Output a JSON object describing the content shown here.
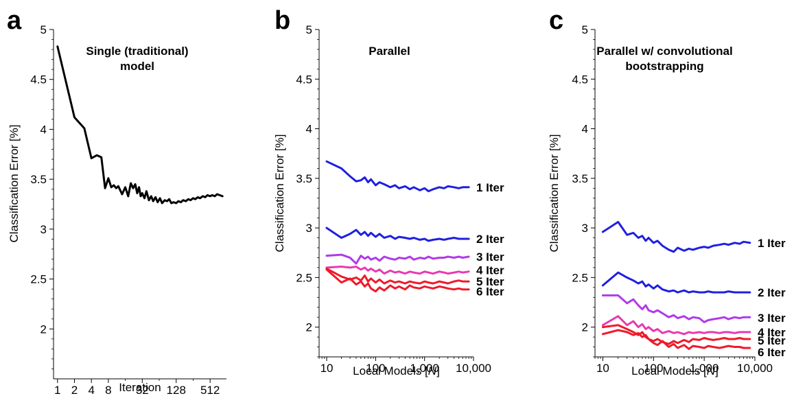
{
  "chart_data": [
    {
      "type": "line",
      "panel_letter": "a",
      "title": "Single (traditional) model",
      "xlabel": "Iteration",
      "ylabel": "Classification Error [%]",
      "xscale": "log2",
      "xlim": [
        0.85,
        1000
      ],
      "ylim": [
        1.5,
        5
      ],
      "xticks": [
        1,
        2,
        4,
        8,
        32,
        128,
        512
      ],
      "xtick_labels": [
        "1",
        "2",
        "4",
        "8",
        "32",
        "128",
        "512"
      ],
      "yticks": [
        2,
        2.5,
        3,
        3.5,
        4,
        4.5,
        5
      ],
      "ytick_labels": [
        "2",
        "2.5",
        "3",
        "3.5",
        "4",
        "4.5",
        "5"
      ],
      "colors": {
        "line": "#000000"
      },
      "series": [
        {
          "x": [
            1,
            2,
            3,
            4,
            5,
            6,
            7,
            8,
            9,
            10,
            11,
            12,
            14,
            16,
            18,
            20,
            22,
            24,
            26,
            28,
            30,
            32,
            35,
            38,
            42,
            46,
            50,
            55,
            60,
            66,
            72,
            80,
            88,
            96,
            105,
            115,
            128,
            140,
            155,
            170,
            190,
            210,
            230,
            256,
            280,
            310,
            340,
            380,
            420,
            460,
            512,
            560,
            620,
            680,
            760,
            850
          ],
          "y": [
            4.83,
            4.12,
            4.01,
            3.71,
            3.74,
            3.72,
            3.41,
            3.51,
            3.42,
            3.44,
            3.41,
            3.43,
            3.35,
            3.42,
            3.33,
            3.46,
            3.41,
            3.45,
            3.36,
            3.42,
            3.33,
            3.36,
            3.31,
            3.38,
            3.29,
            3.33,
            3.28,
            3.32,
            3.27,
            3.31,
            3.26,
            3.29,
            3.28,
            3.3,
            3.26,
            3.27,
            3.26,
            3.28,
            3.27,
            3.29,
            3.28,
            3.3,
            3.29,
            3.31,
            3.3,
            3.32,
            3.31,
            3.33,
            3.32,
            3.34,
            3.33,
            3.34,
            3.33,
            3.35,
            3.34,
            3.33
          ]
        }
      ]
    },
    {
      "type": "line",
      "panel_letter": "b",
      "title": "Parallel",
      "xlabel": "Local Models [N]",
      "ylabel": "Classification Error [%]",
      "xscale": "log10",
      "xlim": [
        7,
        10000
      ],
      "ylim": [
        1.7,
        5
      ],
      "xticks": [
        10,
        100,
        1000,
        10000
      ],
      "xtick_labels": [
        "10",
        "100",
        "1,000",
        "10,000"
      ],
      "yticks": [
        2,
        2.5,
        3,
        3.5,
        4,
        4.5,
        5
      ],
      "ytick_labels": [
        "2",
        "2.5",
        "3",
        "3.5",
        "4",
        "4.5",
        "5"
      ],
      "series": [
        {
          "name": "1 Iter",
          "color": "#1f1fe0",
          "x": [
            10,
            20,
            30,
            40,
            50,
            60,
            70,
            80,
            100,
            120,
            150,
            200,
            250,
            300,
            400,
            500,
            600,
            800,
            1000,
            1200,
            1500,
            2000,
            2500,
            3000,
            4000,
            5000,
            6000,
            8000
          ],
          "y": [
            3.67,
            3.6,
            3.52,
            3.47,
            3.48,
            3.51,
            3.46,
            3.49,
            3.43,
            3.46,
            3.44,
            3.41,
            3.43,
            3.4,
            3.42,
            3.39,
            3.41,
            3.38,
            3.4,
            3.37,
            3.39,
            3.41,
            3.4,
            3.42,
            3.41,
            3.4,
            3.41,
            3.41
          ]
        },
        {
          "name": "2 Iter",
          "color": "#1f1fe0",
          "x": [
            10,
            20,
            30,
            40,
            50,
            60,
            70,
            80,
            100,
            120,
            150,
            200,
            250,
            300,
            400,
            500,
            600,
            800,
            1000,
            1200,
            1500,
            2000,
            2500,
            3000,
            4000,
            5000,
            6000,
            8000
          ],
          "y": [
            3.0,
            2.9,
            2.94,
            2.98,
            2.93,
            2.96,
            2.92,
            2.95,
            2.91,
            2.94,
            2.9,
            2.92,
            2.89,
            2.91,
            2.9,
            2.89,
            2.9,
            2.88,
            2.89,
            2.87,
            2.88,
            2.89,
            2.88,
            2.89,
            2.9,
            2.89,
            2.89,
            2.89
          ]
        },
        {
          "name": "3 Iter",
          "color": "#b03ae8",
          "x": [
            10,
            20,
            30,
            40,
            50,
            60,
            70,
            80,
            100,
            120,
            150,
            200,
            250,
            300,
            400,
            500,
            600,
            800,
            1000,
            1200,
            1500,
            2000,
            2500,
            3000,
            4000,
            5000,
            6000,
            8000
          ],
          "y": [
            2.72,
            2.73,
            2.7,
            2.64,
            2.72,
            2.69,
            2.71,
            2.68,
            2.7,
            2.67,
            2.71,
            2.69,
            2.68,
            2.7,
            2.69,
            2.71,
            2.68,
            2.7,
            2.69,
            2.71,
            2.69,
            2.7,
            2.7,
            2.71,
            2.7,
            2.71,
            2.7,
            2.71
          ]
        },
        {
          "name": "4 Iter",
          "color": "#e83ab0",
          "x": [
            10,
            20,
            30,
            40,
            50,
            60,
            70,
            80,
            100,
            120,
            150,
            200,
            250,
            300,
            400,
            500,
            600,
            800,
            1000,
            1200,
            1500,
            2000,
            2500,
            3000,
            4000,
            5000,
            6000,
            8000
          ],
          "y": [
            2.6,
            2.61,
            2.6,
            2.61,
            2.58,
            2.6,
            2.57,
            2.59,
            2.56,
            2.58,
            2.54,
            2.57,
            2.55,
            2.56,
            2.54,
            2.56,
            2.55,
            2.54,
            2.56,
            2.55,
            2.54,
            2.56,
            2.55,
            2.54,
            2.55,
            2.56,
            2.55,
            2.56
          ]
        },
        {
          "name": "5 Iter",
          "color": "#ee1a2a",
          "x": [
            10,
            20,
            30,
            40,
            50,
            60,
            70,
            80,
            100,
            120,
            150,
            200,
            250,
            300,
            400,
            500,
            600,
            800,
            1000,
            1200,
            1500,
            2000,
            2500,
            3000,
            4000,
            5000,
            6000,
            8000
          ],
          "y": [
            2.59,
            2.51,
            2.48,
            2.5,
            2.47,
            2.52,
            2.46,
            2.49,
            2.45,
            2.48,
            2.44,
            2.47,
            2.45,
            2.46,
            2.44,
            2.46,
            2.45,
            2.44,
            2.46,
            2.45,
            2.44,
            2.46,
            2.45,
            2.44,
            2.46,
            2.47,
            2.46,
            2.46
          ]
        },
        {
          "name": "6 Iter",
          "color": "#ee1a2a",
          "x": [
            10,
            20,
            30,
            40,
            50,
            60,
            70,
            80,
            100,
            120,
            150,
            200,
            250,
            300,
            400,
            500,
            600,
            800,
            1000,
            1200,
            1500,
            2000,
            2500,
            3000,
            4000,
            5000,
            6000,
            8000
          ],
          "y": [
            2.58,
            2.45,
            2.49,
            2.43,
            2.46,
            2.41,
            2.44,
            2.39,
            2.36,
            2.4,
            2.37,
            2.42,
            2.39,
            2.41,
            2.38,
            2.42,
            2.4,
            2.39,
            2.41,
            2.4,
            2.39,
            2.41,
            2.4,
            2.39,
            2.38,
            2.39,
            2.38,
            2.38
          ]
        }
      ]
    },
    {
      "type": "line",
      "panel_letter": "c",
      "title": "Parallel w/ convolutional bootstrapping",
      "xlabel": "Local Models [N]",
      "ylabel": "Classification Error [%]",
      "xscale": "log10",
      "xlim": [
        7,
        10000
      ],
      "ylim": [
        1.7,
        5
      ],
      "xticks": [
        10,
        100,
        1000,
        10000
      ],
      "xtick_labels": [
        "10",
        "100",
        "1,000",
        "10,000"
      ],
      "yticks": [
        2,
        2.5,
        3,
        3.5,
        4,
        4.5,
        5
      ],
      "ytick_labels": [
        "2",
        "2.5",
        "3",
        "3.5",
        "4",
        "4.5",
        "5"
      ],
      "series": [
        {
          "name": "1 Iter",
          "color": "#1f1fe0",
          "x": [
            10,
            20,
            30,
            40,
            50,
            60,
            70,
            80,
            100,
            120,
            150,
            200,
            250,
            300,
            400,
            500,
            600,
            800,
            1000,
            1200,
            1500,
            2000,
            2500,
            3000,
            4000,
            5000,
            6000,
            8000
          ],
          "y": [
            2.96,
            3.06,
            2.93,
            2.95,
            2.9,
            2.92,
            2.87,
            2.9,
            2.85,
            2.87,
            2.82,
            2.78,
            2.76,
            2.8,
            2.77,
            2.79,
            2.78,
            2.8,
            2.81,
            2.8,
            2.82,
            2.83,
            2.84,
            2.83,
            2.85,
            2.84,
            2.86,
            2.85
          ]
        },
        {
          "name": "2 Iter",
          "color": "#1f1fe0",
          "x": [
            10,
            20,
            30,
            40,
            50,
            60,
            70,
            80,
            100,
            120,
            150,
            200,
            250,
            300,
            400,
            500,
            600,
            800,
            1000,
            1200,
            1500,
            2000,
            2500,
            3000,
            4000,
            5000,
            6000,
            8000
          ],
          "y": [
            2.42,
            2.55,
            2.5,
            2.47,
            2.44,
            2.46,
            2.41,
            2.43,
            2.39,
            2.42,
            2.38,
            2.36,
            2.37,
            2.35,
            2.37,
            2.35,
            2.36,
            2.35,
            2.35,
            2.36,
            2.35,
            2.35,
            2.35,
            2.36,
            2.35,
            2.35,
            2.35,
            2.35
          ]
        },
        {
          "name": "3 Iter",
          "color": "#b03ae8",
          "x": [
            10,
            20,
            30,
            40,
            50,
            60,
            70,
            80,
            100,
            120,
            150,
            200,
            250,
            300,
            400,
            500,
            600,
            800,
            1000,
            1200,
            1500,
            2000,
            2500,
            3000,
            4000,
            5000,
            6000,
            8000
          ],
          "y": [
            2.32,
            2.32,
            2.24,
            2.28,
            2.22,
            2.18,
            2.22,
            2.17,
            2.15,
            2.17,
            2.14,
            2.1,
            2.12,
            2.09,
            2.11,
            2.08,
            2.1,
            2.09,
            2.05,
            2.07,
            2.08,
            2.09,
            2.1,
            2.08,
            2.1,
            2.09,
            2.1,
            2.1
          ]
        },
        {
          "name": "4 Iter",
          "color": "#e83ab0",
          "x": [
            10,
            20,
            30,
            40,
            50,
            60,
            70,
            80,
            100,
            120,
            150,
            200,
            250,
            300,
            400,
            500,
            600,
            800,
            1000,
            1200,
            1500,
            2000,
            2500,
            3000,
            4000,
            5000,
            6000,
            8000
          ],
          "y": [
            2.02,
            2.11,
            2.02,
            2.06,
            2.0,
            2.03,
            1.98,
            2.0,
            1.96,
            1.98,
            1.94,
            1.96,
            1.94,
            1.95,
            1.93,
            1.95,
            1.94,
            1.95,
            1.94,
            1.95,
            1.95,
            1.94,
            1.95,
            1.95,
            1.94,
            1.95,
            1.95,
            1.95
          ]
        },
        {
          "name": "5 Iter",
          "color": "#ee1a2a",
          "x": [
            10,
            20,
            30,
            40,
            50,
            60,
            70,
            80,
            100,
            120,
            150,
            200,
            250,
            300,
            400,
            500,
            600,
            800,
            1000,
            1200,
            1500,
            2000,
            2500,
            3000,
            4000,
            5000,
            6000,
            8000
          ],
          "y": [
            1.93,
            1.97,
            1.95,
            1.92,
            1.94,
            1.9,
            1.92,
            1.88,
            1.86,
            1.88,
            1.85,
            1.83,
            1.86,
            1.84,
            1.87,
            1.85,
            1.88,
            1.87,
            1.89,
            1.88,
            1.87,
            1.88,
            1.89,
            1.88,
            1.88,
            1.89,
            1.88,
            1.88
          ]
        },
        {
          "name": "6 Iter",
          "color": "#ee1a2a",
          "x": [
            10,
            20,
            30,
            40,
            50,
            60,
            70,
            80,
            100,
            120,
            150,
            200,
            250,
            300,
            400,
            500,
            600,
            800,
            1000,
            1200,
            1500,
            2000,
            2500,
            3000,
            4000,
            5000,
            6000,
            8000
          ],
          "y": [
            2.0,
            2.02,
            1.98,
            1.95,
            1.92,
            1.95,
            1.9,
            1.88,
            1.84,
            1.82,
            1.86,
            1.8,
            1.83,
            1.79,
            1.82,
            1.78,
            1.81,
            1.8,
            1.79,
            1.81,
            1.8,
            1.79,
            1.8,
            1.81,
            1.8,
            1.8,
            1.79,
            1.79
          ]
        }
      ]
    }
  ]
}
